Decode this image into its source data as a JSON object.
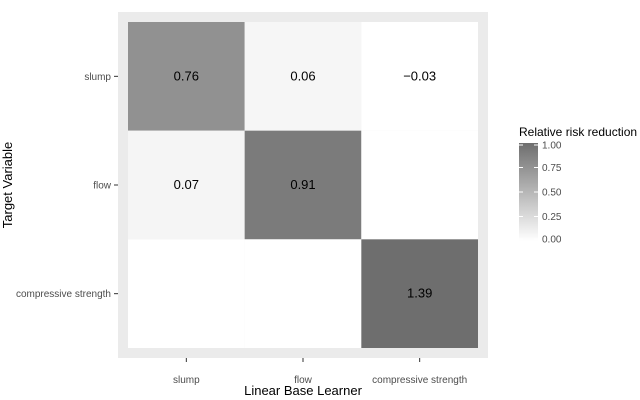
{
  "chart_data": {
    "type": "heatmap",
    "title": "",
    "xlabel": "Linear Base Learner",
    "ylabel": "Target Variable",
    "x_categories": [
      "slump",
      "flow",
      "compressive strength"
    ],
    "y_categories": [
      "slump",
      "flow",
      "compressive strength"
    ],
    "cells": [
      {
        "x": "slump",
        "y": "slump",
        "value": 0.76,
        "label": "0.76"
      },
      {
        "x": "flow",
        "y": "slump",
        "value": 0.06,
        "label": "0.06"
      },
      {
        "x": "compressive strength",
        "y": "slump",
        "value": -0.03,
        "label": "−0.03"
      },
      {
        "x": "slump",
        "y": "flow",
        "value": 0.07,
        "label": "0.07"
      },
      {
        "x": "flow",
        "y": "flow",
        "value": 0.91,
        "label": "0.91"
      },
      {
        "x": "compressive strength",
        "y": "flow",
        "value": null,
        "label": ""
      },
      {
        "x": "slump",
        "y": "compressive strength",
        "value": null,
        "label": ""
      },
      {
        "x": "flow",
        "y": "compressive strength",
        "value": null,
        "label": ""
      },
      {
        "x": "compressive strength",
        "y": "compressive strength",
        "value": 1.39,
        "label": "1.39"
      }
    ],
    "legend": {
      "title": "Relative risk reduction",
      "position": "right",
      "ticks": [
        "1.00",
        "0.75",
        "0.50",
        "0.25",
        "0.00"
      ],
      "range": [
        0,
        1
      ]
    },
    "colors": {
      "low": "#ffffff",
      "high": "#6e6e6e",
      "panel_background": "#ebebeb"
    },
    "grid": false
  }
}
